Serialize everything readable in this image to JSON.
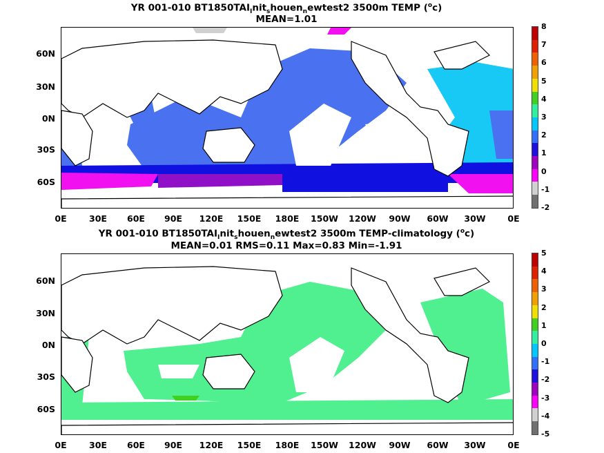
{
  "panel1": {
    "title_pre": "YR 001-010 BT1850TAI",
    "sub1": "I",
    "mid1": "nit",
    "sub2": "s",
    "mid2": "houen",
    "sub3": "n",
    "title_post1": "ewtest2 3500m TEMP (",
    "sup": "o",
    "title_post2": "c)",
    "stats": "MEAN=1.01",
    "colorbar_labels": [
      "8",
      "7",
      "6",
      "5",
      "4",
      "3",
      "2",
      "1",
      "0",
      "-1",
      "-2"
    ],
    "colorbar_colors": [
      "#c00000",
      "#e02000",
      "#f06000",
      "#f0a000",
      "#f0e000",
      "#40d020",
      "#30f0a0",
      "#00c8ff",
      "#3070ff",
      "#2010e0",
      "#a000c0",
      "#ff00ff",
      "#d0d0d0",
      "#707070"
    ]
  },
  "panel2": {
    "title_pre": "YR 001-010 BT1850TAI",
    "sub1": "I",
    "mid1": "nit",
    "sub2": "s",
    "mid2": "houen",
    "sub3": "n",
    "title_post1": "ewtest2 3500m TEMP-climatology (",
    "sup": "o",
    "title_post2": "c)",
    "stats": "MEAN=0.01   RMS=0.11   Max=0.83   Min=-1.91",
    "colorbar_labels": [
      "5",
      "4",
      "3",
      "2",
      "1",
      "0",
      "-1",
      "-2",
      "-3",
      "-4",
      "-5"
    ],
    "colorbar_colors": [
      "#c00000",
      "#e02000",
      "#f06000",
      "#f0a000",
      "#f0e000",
      "#40d020",
      "#30f0a0",
      "#00c8ff",
      "#3070ff",
      "#2010e0",
      "#a000c0",
      "#ff00ff",
      "#d0d0d0",
      "#707070"
    ]
  },
  "axes": {
    "lat_labels": [
      "60N",
      "30N",
      "0N",
      "30S",
      "60S"
    ],
    "lon_labels": [
      "0E",
      "30E",
      "60E",
      "90E",
      "120E",
      "150E",
      "180E",
      "150W",
      "120W",
      "90W",
      "60W",
      "30W",
      "0E"
    ]
  },
  "colors": {
    "ocean_blue": "#4a72f0",
    "light_blue": "#18c8f5",
    "deep_blue": "#1010e0",
    "purple": "#9010c8",
    "magenta": "#f010f0",
    "anom_green": "#50f090",
    "anom_darkgreen": "#40d020",
    "land": "#ffffff",
    "coast": "#000000"
  }
}
